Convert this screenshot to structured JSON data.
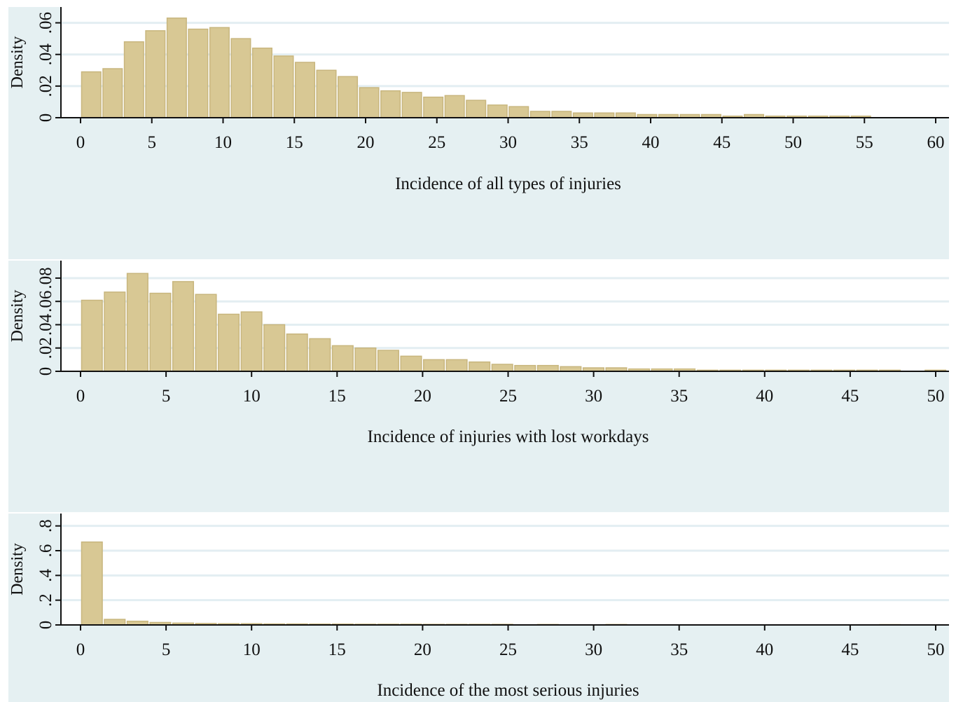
{
  "colors": {
    "outer_background": "#e5f0f2",
    "plot_background": "#ffffff",
    "bar_fill": "#d8c894",
    "bar_edge": "#c8b67e",
    "grid": "#e3eef2",
    "axis": "#111111"
  },
  "chart_data": [
    {
      "type": "bar",
      "subtype": "histogram",
      "xlabel": "Incidence of all types of injuries",
      "ylabel": "Density",
      "xlim": [
        0,
        60
      ],
      "ylim": [
        0,
        0.07
      ],
      "xticks": [
        0,
        5,
        10,
        15,
        20,
        25,
        30,
        35,
        40,
        45,
        50,
        55,
        60
      ],
      "xtick_labels": [
        "0",
        "5",
        "10",
        "15",
        "20",
        "25",
        "30",
        "35",
        "40",
        "45",
        "50",
        "55",
        "60"
      ],
      "yticks": [
        0,
        0.02,
        0.04,
        0.06
      ],
      "ytick_labels": [
        "0",
        ".02",
        ".04",
        ".06"
      ],
      "grid": true,
      "bin_start": 0,
      "bin_width": 1.5,
      "values": [
        0.029,
        0.031,
        0.048,
        0.055,
        0.063,
        0.056,
        0.057,
        0.05,
        0.044,
        0.039,
        0.035,
        0.03,
        0.026,
        0.019,
        0.017,
        0.016,
        0.013,
        0.014,
        0.011,
        0.008,
        0.007,
        0.004,
        0.004,
        0.003,
        0.003,
        0.003,
        0.002,
        0.002,
        0.002,
        0.002,
        0.001,
        0.002,
        0.001,
        0.001,
        0.001,
        0.001,
        0.001
      ]
    },
    {
      "type": "bar",
      "subtype": "histogram",
      "xlabel": "Incidence of injuries with lost workdays",
      "ylabel": "Density",
      "xlim": [
        0,
        50
      ],
      "ylim": [
        0,
        0.095
      ],
      "xticks": [
        0,
        5,
        10,
        15,
        20,
        25,
        30,
        35,
        40,
        45,
        50
      ],
      "xtick_labels": [
        "0",
        "5",
        "10",
        "15",
        "20",
        "25",
        "30",
        "35",
        "40",
        "45",
        "50"
      ],
      "yticks": [
        0,
        0.02,
        0.04,
        0.06,
        0.08
      ],
      "ytick_labels": [
        "0",
        ".02",
        ".04",
        ".06",
        ".08"
      ],
      "grid": true,
      "bin_start": 0,
      "bin_width": 1.333,
      "values": [
        0.061,
        0.068,
        0.084,
        0.067,
        0.077,
        0.066,
        0.049,
        0.051,
        0.04,
        0.032,
        0.028,
        0.022,
        0.02,
        0.018,
        0.013,
        0.01,
        0.01,
        0.008,
        0.006,
        0.005,
        0.005,
        0.004,
        0.003,
        0.003,
        0.002,
        0.002,
        0.002,
        0.001,
        0.001,
        0.001,
        0.001,
        0.001,
        0.001,
        0.001,
        0.001,
        0.001,
        0,
        0.001
      ]
    },
    {
      "type": "bar",
      "subtype": "histogram",
      "xlabel": "Incidence of the most serious injuries",
      "ylabel": "Density",
      "xlim": [
        0,
        50
      ],
      "ylim": [
        0,
        0.9
      ],
      "xticks": [
        0,
        5,
        10,
        15,
        20,
        25,
        30,
        35,
        40,
        45,
        50
      ],
      "xtick_labels": [
        "0",
        "5",
        "10",
        "15",
        "20",
        "25",
        "30",
        "35",
        "40",
        "45",
        "50"
      ],
      "yticks": [
        0,
        0.2,
        0.4,
        0.6,
        0.8
      ],
      "ytick_labels": [
        "0",
        ".2",
        ".4",
        ".6",
        ".8"
      ],
      "grid": true,
      "bin_start": 0,
      "bin_width": 1.333,
      "values": [
        0.67,
        0.045,
        0.03,
        0.02,
        0.015,
        0.012,
        0.01,
        0.01,
        0.008,
        0.008,
        0.007,
        0.007,
        0.006,
        0.006,
        0.006,
        0.005,
        0.005,
        0.005,
        0.005,
        0,
        0.004,
        0,
        0,
        0.004,
        0,
        0,
        0,
        0,
        0,
        0,
        0,
        0,
        0,
        0,
        0,
        0.003
      ]
    }
  ]
}
